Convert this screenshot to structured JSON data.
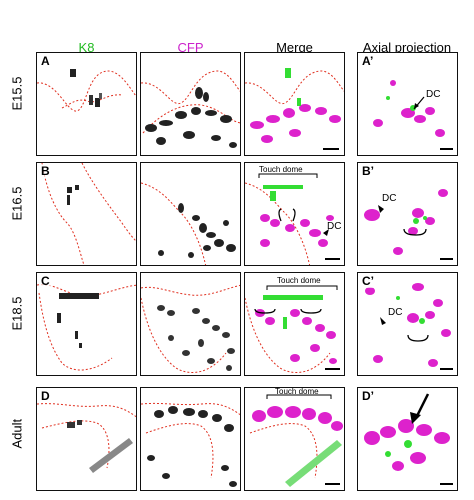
{
  "headers": {
    "k8": "K8",
    "cfp": "CFP",
    "merge": "Merge",
    "axial": "Axial projection"
  },
  "colors": {
    "k8_green": "#33dd33",
    "cfp_magenta": "#dd22cc",
    "dashed_outline": "#e03020",
    "header_green": "#22bb22",
    "header_magenta": "#cc22cc"
  },
  "rows": [
    {
      "stage": "E15.5",
      "labels": {
        "a": "A",
        "m": "",
        "p": "A’"
      },
      "annotations": {
        "merge": "",
        "axial": "DC",
        "merge_dc": ""
      }
    },
    {
      "stage": "E16.5",
      "labels": {
        "a": "B",
        "m": "",
        "p": "B’"
      },
      "annotations": {
        "merge": "Touch dome",
        "axial": "DC",
        "merge_dc": "DC"
      }
    },
    {
      "stage": "E18.5",
      "labels": {
        "a": "C",
        "m": "",
        "p": "C’"
      },
      "annotations": {
        "merge": "Touch dome",
        "axial": "DC",
        "merge_dc": ""
      }
    },
    {
      "stage": "Adult",
      "labels": {
        "a": "D",
        "m": "",
        "p": "D’"
      },
      "annotations": {
        "merge": "Touch dome",
        "axial": "",
        "merge_dc": ""
      }
    }
  ],
  "icons": {
    "arrow": "arrow-icon",
    "arrowhead": "arrowhead-icon",
    "brace": "brace-icon",
    "scale_bar": "scale-bar-icon"
  }
}
